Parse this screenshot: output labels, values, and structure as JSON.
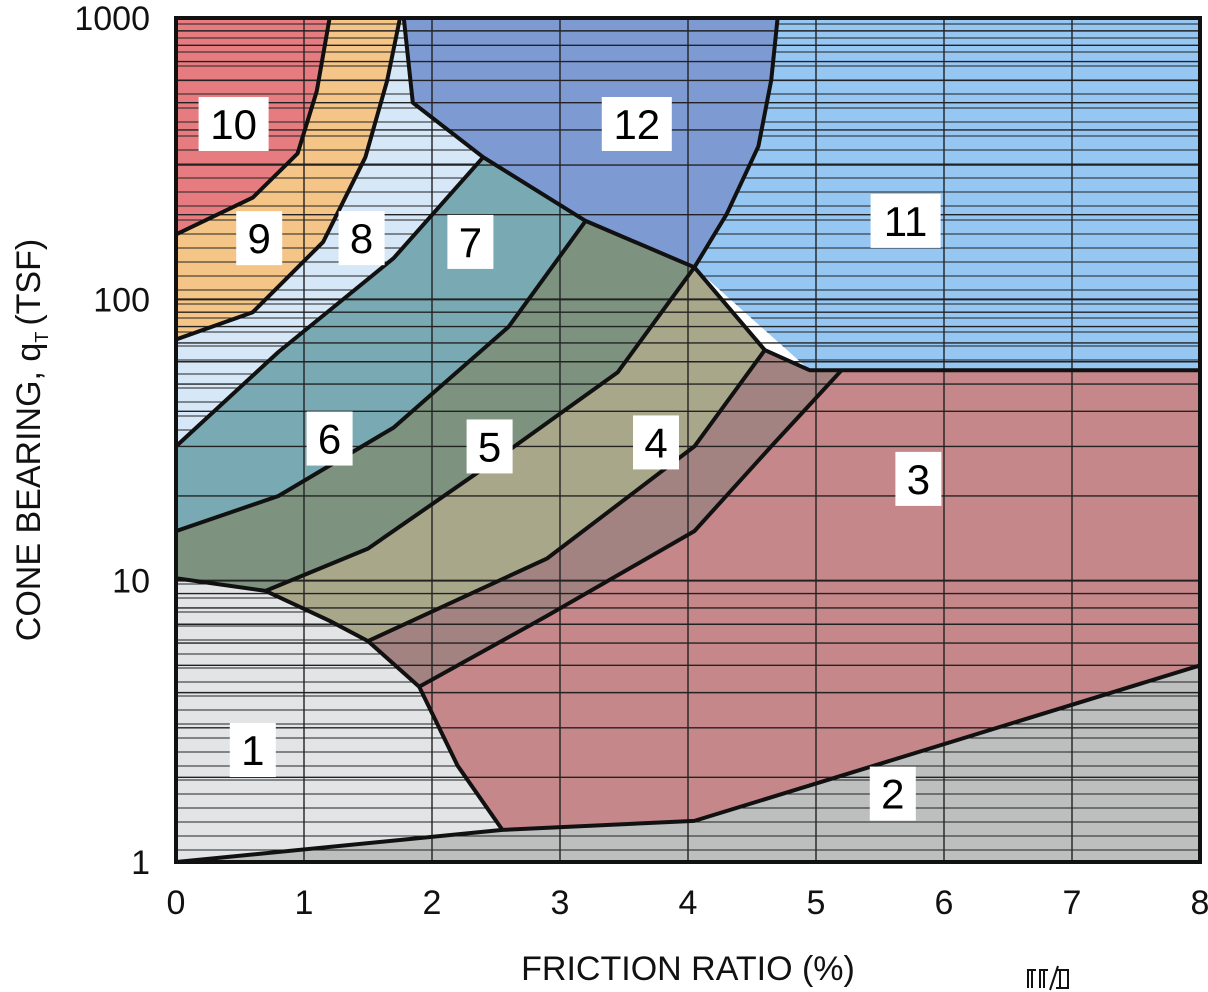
{
  "chart_data": {
    "type": "area",
    "title": "",
    "xlabel": "FRICTION RATIO (%)",
    "ylabel": "CONE BEARING, q",
    "ylabel_subscript": "T",
    "ylabel_unit": "(TSF)",
    "xlim": [
      0,
      8
    ],
    "ylim": [
      1,
      1000
    ],
    "yscale": "log",
    "grid": true,
    "x_ticks": [
      "0",
      "1",
      "2",
      "3",
      "4",
      "5",
      "6",
      "7",
      "8"
    ],
    "y_ticks": [
      "1",
      "10",
      "100",
      "1000"
    ],
    "zone_colors": {
      "1": "#e3e4e6",
      "2": "#bdbebe",
      "3": "#c58789",
      "4": "#a38381",
      "5": "#a9a78a",
      "6": "#7d927f",
      "7": "#79aab3",
      "8": "#d6e7f7",
      "9": "#f4c586",
      "10": "#e67c80",
      "11": "#96c6f2",
      "12": "#7e9ad2"
    },
    "zones": [
      {
        "id": "10",
        "label": "10",
        "label_at": [
          0.45,
          420
        ],
        "polygon": [
          [
            0,
            1000
          ],
          [
            1.2,
            1000
          ],
          [
            1.1,
            550
          ],
          [
            0.95,
            330
          ],
          [
            0.6,
            230
          ],
          [
            0,
            170
          ]
        ]
      },
      {
        "id": "9",
        "label": "9",
        "label_at": [
          0.65,
          165
        ],
        "polygon": [
          [
            1.2,
            1000
          ],
          [
            1.75,
            1000
          ],
          [
            1.65,
            600
          ],
          [
            1.48,
            320
          ],
          [
            1.15,
            160
          ],
          [
            0.6,
            90
          ],
          [
            0,
            72
          ],
          [
            0,
            170
          ],
          [
            0.6,
            230
          ],
          [
            0.95,
            330
          ],
          [
            1.1,
            550
          ]
        ]
      },
      {
        "id": "8",
        "label": "8",
        "label_at": [
          1.45,
          165
        ],
        "polygon": [
          [
            1.75,
            1000
          ],
          [
            1.78,
            1000
          ],
          [
            1.85,
            500
          ],
          [
            2.4,
            320
          ],
          [
            1.7,
            140
          ],
          [
            0.8,
            65
          ],
          [
            0,
            30
          ],
          [
            0,
            72
          ],
          [
            0.6,
            90
          ],
          [
            1.15,
            160
          ],
          [
            1.48,
            320
          ],
          [
            1.65,
            600
          ]
        ]
      },
      {
        "id": "12",
        "label": "12",
        "label_at": [
          3.6,
          420
        ],
        "polygon": [
          [
            1.78,
            1000
          ],
          [
            4.7,
            1000
          ],
          [
            4.65,
            600
          ],
          [
            4.55,
            350
          ],
          [
            4.3,
            200
          ],
          [
            4.05,
            130
          ],
          [
            3.2,
            190
          ],
          [
            2.4,
            320
          ],
          [
            1.85,
            500
          ]
        ]
      },
      {
        "id": "11",
        "label": "11",
        "label_at": [
          5.7,
          190
        ],
        "polygon": [
          [
            4.7,
            1000
          ],
          [
            8,
            1000
          ],
          [
            8,
            56
          ],
          [
            4.95,
            56
          ],
          [
            4.05,
            130
          ],
          [
            4.3,
            200
          ],
          [
            4.55,
            350
          ],
          [
            4.65,
            600
          ]
        ]
      },
      {
        "id": "7",
        "label": "7",
        "label_at": [
          2.3,
          160
        ],
        "polygon": [
          [
            2.4,
            320
          ],
          [
            3.2,
            190
          ],
          [
            2.6,
            80
          ],
          [
            1.7,
            35
          ],
          [
            0.8,
            20
          ],
          [
            0,
            15
          ],
          [
            0,
            30
          ],
          [
            0.8,
            65
          ],
          [
            1.7,
            140
          ]
        ]
      },
      {
        "id": "6",
        "label": "6",
        "label_at": [
          1.2,
          32
        ],
        "polygon": [
          [
            3.2,
            190
          ],
          [
            4.05,
            130
          ],
          [
            3.45,
            55
          ],
          [
            2.4,
            25
          ],
          [
            1.5,
            13
          ],
          [
            0.7,
            9.2
          ],
          [
            0,
            10.2
          ],
          [
            0,
            15
          ],
          [
            0.8,
            20
          ],
          [
            1.7,
            35
          ],
          [
            2.6,
            80
          ]
        ]
      },
      {
        "id": "5",
        "label": "5",
        "label_at": [
          2.45,
          30
        ],
        "polygon": [
          [
            4.05,
            130
          ],
          [
            4.6,
            66
          ],
          [
            4.05,
            30
          ],
          [
            2.9,
            12
          ],
          [
            1.5,
            6.1
          ],
          [
            1.2,
            7.2
          ],
          [
            0.7,
            9.2
          ],
          [
            1.5,
            13
          ],
          [
            2.4,
            25
          ],
          [
            3.45,
            55
          ]
        ]
      },
      {
        "id": "4",
        "label": "4",
        "label_at": [
          3.75,
          31
        ],
        "polygon": [
          [
            4.6,
            66
          ],
          [
            4.95,
            56
          ],
          [
            5.2,
            56
          ],
          [
            4.65,
            30
          ],
          [
            4.05,
            15
          ],
          [
            2.9,
            7.5
          ],
          [
            1.9,
            4.2
          ],
          [
            1.5,
            6.1
          ],
          [
            2.9,
            12
          ],
          [
            4.05,
            30
          ]
        ]
      },
      {
        "id": "3",
        "label": "3",
        "label_at": [
          5.8,
          23
        ],
        "polygon": [
          [
            5.2,
            56
          ],
          [
            8,
            56
          ],
          [
            8,
            5
          ],
          [
            4.05,
            1.4
          ],
          [
            2.55,
            1.3
          ],
          [
            2.2,
            2.2
          ],
          [
            1.9,
            4.2
          ],
          [
            2.9,
            7.5
          ],
          [
            4.05,
            15
          ],
          [
            4.65,
            30
          ]
        ]
      },
      {
        "id": "1",
        "label": "1",
        "label_at": [
          0.6,
          2.5
        ],
        "polygon": [
          [
            0,
            1
          ],
          [
            2.55,
            1.3
          ],
          [
            2.2,
            2.2
          ],
          [
            1.9,
            4.2
          ],
          [
            1.5,
            6.1
          ],
          [
            1.2,
            7.2
          ],
          [
            0.7,
            9.2
          ],
          [
            0,
            10.2
          ]
        ]
      },
      {
        "id": "2",
        "label": "2",
        "label_at": [
          5.6,
          1.75
        ],
        "polygon": [
          [
            0,
            1
          ],
          [
            8,
            1
          ],
          [
            8,
            5
          ],
          [
            4.05,
            1.4
          ],
          [
            2.55,
            1.3
          ]
        ]
      }
    ],
    "hatched_zones": [
      "1",
      "2",
      "8",
      "9",
      "10",
      "11"
    ],
    "boundaries": [
      [
        [
          0,
          170
        ],
        [
          0.6,
          230
        ],
        [
          0.95,
          330
        ],
        [
          1.1,
          550
        ],
        [
          1.2,
          1000
        ]
      ],
      [
        [
          0,
          72
        ],
        [
          0.6,
          90
        ],
        [
          1.15,
          160
        ],
        [
          1.48,
          320
        ],
        [
          1.65,
          600
        ],
        [
          1.75,
          1000
        ]
      ],
      [
        [
          1.78,
          1000
        ],
        [
          1.85,
          500
        ],
        [
          2.4,
          320
        ],
        [
          3.2,
          190
        ],
        [
          4.05,
          130
        ],
        [
          4.6,
          66
        ],
        [
          4.95,
          56
        ],
        [
          8,
          56
        ]
      ],
      [
        [
          4.7,
          1000
        ],
        [
          4.65,
          600
        ],
        [
          4.55,
          350
        ],
        [
          4.3,
          200
        ],
        [
          4.05,
          130
        ]
      ],
      [
        [
          0,
          30
        ],
        [
          0.8,
          65
        ],
        [
          1.7,
          140
        ],
        [
          2.4,
          320
        ]
      ],
      [
        [
          0,
          15
        ],
        [
          0.8,
          20
        ],
        [
          1.7,
          35
        ],
        [
          2.6,
          80
        ],
        [
          3.2,
          190
        ]
      ],
      [
        [
          0,
          10.2
        ],
        [
          0.7,
          9.2
        ],
        [
          1.5,
          13
        ],
        [
          2.4,
          25
        ],
        [
          3.45,
          55
        ],
        [
          4.05,
          130
        ]
      ],
      [
        [
          0.7,
          9.2
        ],
        [
          1.2,
          7.2
        ],
        [
          1.5,
          6.1
        ],
        [
          2.9,
          12
        ],
        [
          4.05,
          30
        ],
        [
          4.6,
          66
        ]
      ],
      [
        [
          1.9,
          4.2
        ],
        [
          2.9,
          7.5
        ],
        [
          4.05,
          15
        ],
        [
          4.65,
          30
        ],
        [
          5.2,
          56
        ]
      ],
      [
        [
          1.5,
          6.1
        ],
        [
          1.9,
          4.2
        ],
        [
          2.2,
          2.2
        ],
        [
          2.55,
          1.3
        ]
      ],
      [
        [
          0,
          1
        ],
        [
          2.55,
          1.3
        ],
        [
          4.05,
          1.4
        ],
        [
          8,
          5
        ]
      ]
    ]
  },
  "logo_text": "𝛏𝚷𝚷𝛏"
}
